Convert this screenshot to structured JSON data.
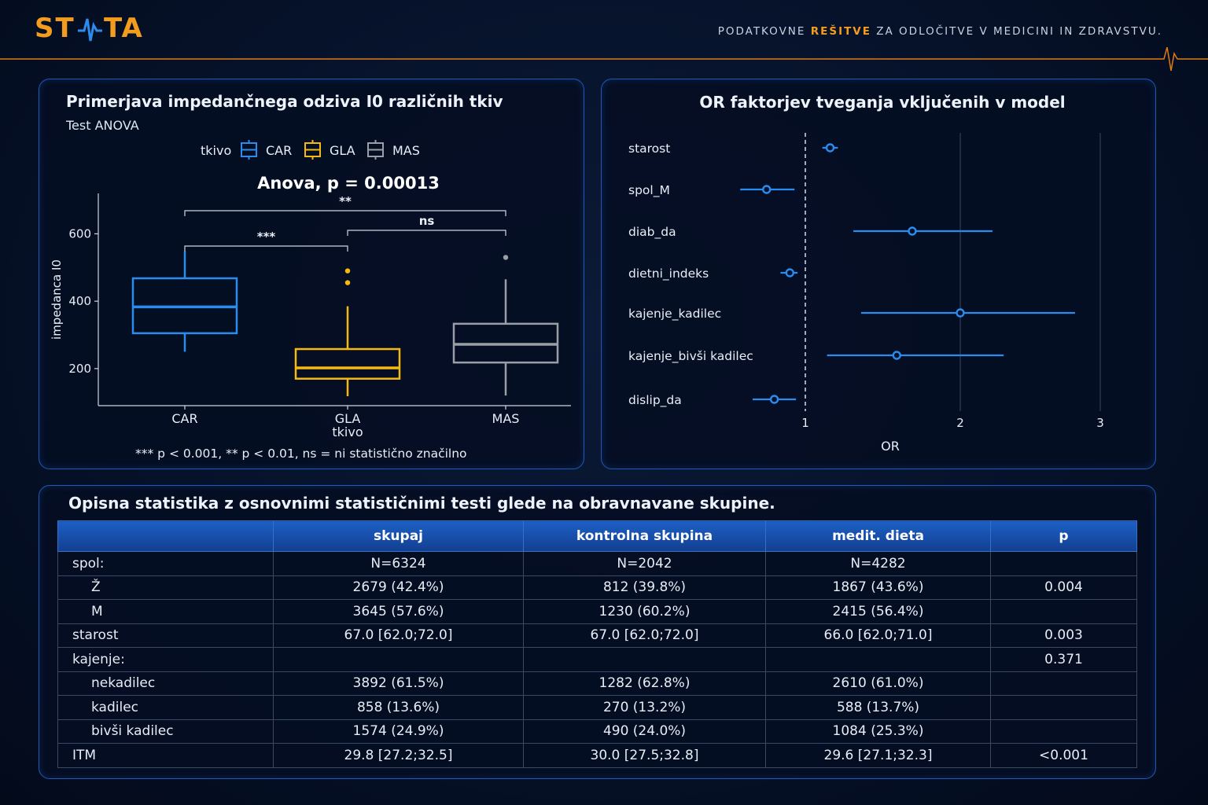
{
  "header": {
    "logo_text": "STATA",
    "tagline_pre": "PODATKOVNE ",
    "tagline_hl": "REŠITVE",
    "tagline_post": " ZA ODLOČITVE V MEDICINI IN ZDRAVSTVU.",
    "colors": {
      "accent": "#f39c1e",
      "panel_border": "#1f5ab8",
      "blue": "#2b8cf0",
      "yellow": "#f5b90f",
      "gray": "#9a9ea6"
    }
  },
  "boxplot_panel": {
    "title": "Primerjava impedančnega odziva I0 različnih tkiv",
    "subtitle": "Test ANOVA",
    "legend_title": "tkivo",
    "anova_label": "Anova, p = 0.00013",
    "footnote": "*** p < 0.001, ** p < 0.01, ns = ni statistično značilno"
  },
  "or_panel": {
    "title": "OR faktorjev tveganja vključenih v model"
  },
  "chart_data": [
    {
      "type": "boxplot",
      "xlabel": "tkivo",
      "ylabel": "impedanca I0",
      "ylim": [
        90,
        720
      ],
      "yticks": [
        200,
        400,
        600
      ],
      "legend_placement": "top",
      "groups": [
        {
          "name": "CAR",
          "color": "#2b8cf0",
          "whisker_low": 250,
          "q1": 305,
          "median": 383,
          "q3": 468,
          "whisker_high": 548,
          "outliers": []
        },
        {
          "name": "GLA",
          "color": "#f5b90f",
          "whisker_low": 118,
          "q1": 170,
          "median": 202,
          "q3": 258,
          "whisker_high": 385,
          "outliers": [
            455,
            490
          ]
        },
        {
          "name": "MAS",
          "color": "#9a9ea6",
          "whisker_low": 120,
          "q1": 218,
          "median": 272,
          "q3": 333,
          "whisker_high": 465,
          "outliers": [
            530
          ]
        }
      ],
      "comparisons": [
        {
          "from": "CAR",
          "to": "GLA",
          "label": "***"
        },
        {
          "from": "GLA",
          "to": "MAS",
          "label": "ns"
        },
        {
          "from": "CAR",
          "to": "MAS",
          "label": "**"
        }
      ]
    },
    {
      "type": "forest",
      "xlabel": "OR",
      "xlim": [
        0.5,
        3.0
      ],
      "xticks": [
        1,
        2,
        3
      ],
      "reference_line": 1,
      "rows": [
        {
          "label": "starost",
          "or": 1.16,
          "low": 1.11,
          "high": 1.21
        },
        {
          "label": "spol_M",
          "or": 0.75,
          "low": 0.58,
          "high": 0.93
        },
        {
          "label": "diab_da",
          "or": 1.69,
          "low": 1.31,
          "high": 2.23
        },
        {
          "label": "dietni_indeks",
          "or": 0.9,
          "low": 0.84,
          "high": 0.95
        },
        {
          "label": "kajenje_kadilec",
          "or": 2.0,
          "low": 1.36,
          "high": 2.82
        },
        {
          "label": "kajenje_bivši kadilec",
          "or": 1.59,
          "low": 1.14,
          "high": 2.31
        },
        {
          "label": "dislip_da",
          "or": 0.8,
          "low": 0.66,
          "high": 0.94
        }
      ]
    }
  ],
  "table": {
    "title": "Opisna statistika z osnovnimi statističnimi testi glede na obravnavane skupine.",
    "headers": [
      "",
      "skupaj",
      "kontrolna skupina",
      "medit. dieta",
      "p"
    ],
    "rows": [
      {
        "label": "spol:",
        "indent": false,
        "cells": [
          "N=6324",
          "N=2042",
          "N=4282",
          ""
        ]
      },
      {
        "label": "Ž",
        "indent": true,
        "cells": [
          "2679 (42.4%)",
          "812 (39.8%)",
          "1867 (43.6%)",
          "0.004"
        ]
      },
      {
        "label": "M",
        "indent": true,
        "cells": [
          "3645 (57.6%)",
          "1230 (60.2%)",
          "2415 (56.4%)",
          ""
        ]
      },
      {
        "label": "starost",
        "indent": false,
        "cells": [
          "67.0 [62.0;72.0]",
          "67.0 [62.0;72.0]",
          "66.0 [62.0;71.0]",
          "0.003"
        ]
      },
      {
        "label": "kajenje:",
        "indent": false,
        "cells": [
          "",
          "",
          "",
          "0.371"
        ]
      },
      {
        "label": "nekadilec",
        "indent": true,
        "cells": [
          "3892 (61.5%)",
          "1282 (62.8%)",
          "2610 (61.0%)",
          ""
        ]
      },
      {
        "label": "kadilec",
        "indent": true,
        "cells": [
          "858 (13.6%)",
          "270 (13.2%)",
          "588 (13.7%)",
          ""
        ]
      },
      {
        "label": "bivši kadilec",
        "indent": true,
        "cells": [
          "1574 (24.9%)",
          "490 (24.0%)",
          "1084 (25.3%)",
          ""
        ]
      },
      {
        "label": "ITM",
        "indent": false,
        "cells": [
          "29.8 [27.2;32.5]",
          "30.0 [27.5;32.8]",
          "29.6 [27.1;32.3]",
          "<0.001"
        ]
      }
    ]
  }
}
